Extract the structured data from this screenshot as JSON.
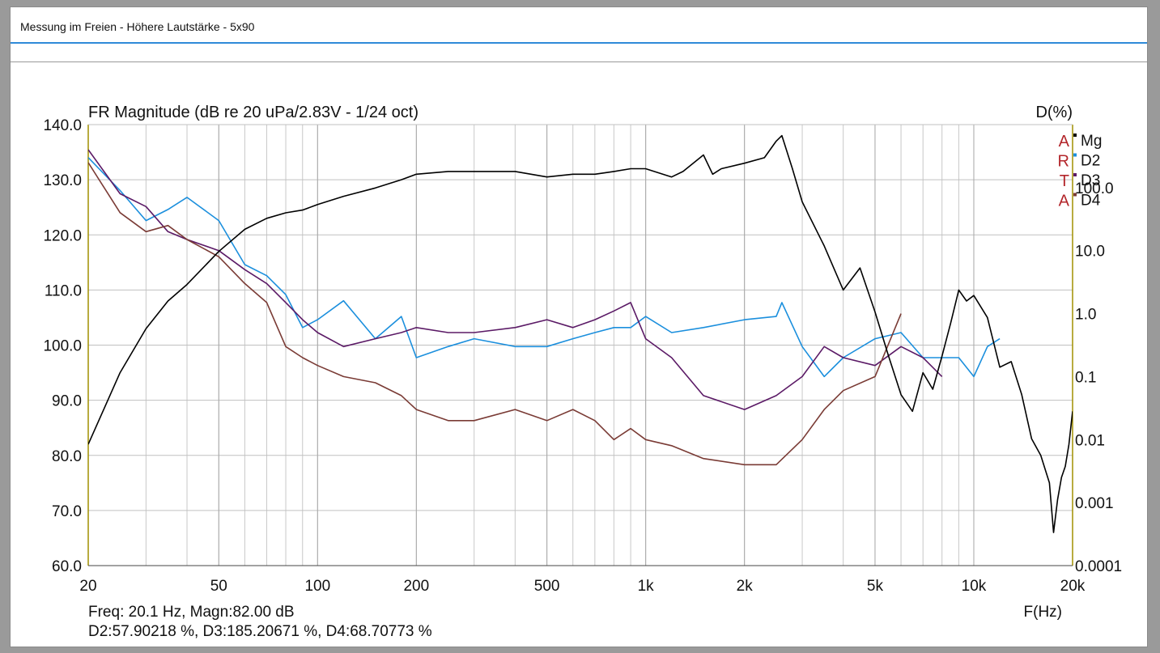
{
  "window": {
    "title": "Messung im Freien - Höhere Lautstärke - 5x90"
  },
  "chart_data": {
    "type": "line",
    "title": "FR Magnitude (dB re 20 uPa/2.83V - 1/24 oct)",
    "right_axis_title": "D(%)",
    "xlabel": "F(Hz)",
    "xscale": "log",
    "xlim": [
      20,
      20000
    ],
    "ylim": [
      60,
      140
    ],
    "y2scale": "log",
    "y2lim": [
      0.0001,
      1000
    ],
    "grid": true,
    "x_ticks": [
      20,
      50,
      100,
      200,
      500,
      1000,
      2000,
      5000,
      10000,
      20000
    ],
    "x_tick_labels": [
      "20",
      "50",
      "100",
      "200",
      "500",
      "1k",
      "2k",
      "5k",
      "10k",
      "20k"
    ],
    "y_ticks": [
      60,
      70,
      80,
      90,
      100,
      110,
      120,
      130,
      140
    ],
    "y_tick_labels": [
      "60.0",
      "70.0",
      "80.0",
      "90.0",
      "100.0",
      "110.0",
      "120.0",
      "130.0",
      "140.0"
    ],
    "y2_ticks": [
      0.0001,
      0.001,
      0.01,
      0.1,
      1,
      10,
      100
    ],
    "y2_tick_labels": [
      "0.0001",
      "0.001",
      "0.01",
      "0.1",
      "1.0",
      "10.0",
      "100.0"
    ],
    "legend_position": "top-right",
    "watermark_letters": [
      "A",
      "R",
      "T",
      "A"
    ],
    "series": [
      {
        "name": "Mg",
        "axis": "left",
        "color": "#000000",
        "x": [
          20,
          25,
          30,
          35,
          40,
          50,
          60,
          70,
          80,
          90,
          100,
          120,
          150,
          180,
          200,
          250,
          300,
          400,
          500,
          600,
          700,
          800,
          900,
          1000,
          1200,
          1300,
          1500,
          1600,
          1700,
          2000,
          2300,
          2500,
          2600,
          2800,
          3000,
          3500,
          4000,
          4500,
          5000,
          5500,
          6000,
          6500,
          7000,
          7500,
          8000,
          8500,
          9000,
          9500,
          10000,
          11000,
          12000,
          13000,
          14000,
          15000,
          16000,
          17000,
          17500,
          18000,
          18500,
          19000,
          19500,
          20000
        ],
        "y": [
          82,
          95,
          103,
          108,
          111,
          117,
          121,
          123,
          124,
          124.5,
          125.5,
          127,
          128.5,
          130,
          131,
          131.5,
          131.5,
          131.5,
          130.5,
          131,
          131,
          131.5,
          132,
          132,
          130.5,
          131.5,
          134.5,
          131,
          132,
          133,
          134,
          137,
          138,
          132,
          126,
          118,
          110,
          114,
          106,
          98,
          91,
          88,
          95,
          92,
          98,
          104,
          110,
          108,
          109,
          105,
          96,
          97,
          91,
          83,
          80,
          75,
          66,
          72,
          76,
          78,
          82,
          88
        ]
      },
      {
        "name": "D2",
        "axis": "right",
        "color": "#1b8fdd",
        "x": [
          20,
          25,
          30,
          35,
          40,
          50,
          60,
          70,
          80,
          90,
          100,
          120,
          150,
          180,
          200,
          250,
          300,
          400,
          500,
          600,
          700,
          800,
          900,
          1000,
          1200,
          1500,
          2000,
          2500,
          2600,
          3000,
          3500,
          4000,
          5000,
          6000,
          7000,
          8000,
          9000,
          10000,
          11000,
          12000
        ],
        "y": [
          300,
          90,
          30,
          45,
          70,
          30,
          6,
          4,
          2,
          0.6,
          0.8,
          1.6,
          0.4,
          0.9,
          0.2,
          0.3,
          0.4,
          0.3,
          0.3,
          0.4,
          0.5,
          0.6,
          0.6,
          0.9,
          0.5,
          0.6,
          0.8,
          0.9,
          1.5,
          0.3,
          0.1,
          0.2,
          0.4,
          0.5,
          0.2,
          0.2,
          0.2,
          0.1,
          0.3,
          0.4
        ]
      },
      {
        "name": "D3",
        "axis": "right",
        "color": "#5b1a66",
        "x": [
          20,
          25,
          30,
          35,
          40,
          50,
          60,
          70,
          80,
          90,
          100,
          120,
          150,
          180,
          200,
          250,
          300,
          400,
          500,
          600,
          700,
          800,
          900,
          1000,
          1200,
          1500,
          2000,
          2500,
          3000,
          3500,
          4000,
          5000,
          6000,
          7000,
          8000
        ],
        "y": [
          400,
          80,
          50,
          20,
          15,
          10,
          5,
          3,
          1.5,
          0.8,
          0.5,
          0.3,
          0.4,
          0.5,
          0.6,
          0.5,
          0.5,
          0.6,
          0.8,
          0.6,
          0.8,
          1.1,
          1.5,
          0.4,
          0.2,
          0.05,
          0.03,
          0.05,
          0.1,
          0.3,
          0.2,
          0.15,
          0.3,
          0.2,
          0.1
        ]
      },
      {
        "name": "D4",
        "axis": "right",
        "color": "#7a3b35",
        "x": [
          20,
          25,
          30,
          35,
          40,
          50,
          60,
          70,
          80,
          90,
          100,
          120,
          150,
          180,
          200,
          250,
          300,
          400,
          500,
          600,
          700,
          800,
          900,
          1000,
          1200,
          1500,
          2000,
          2500,
          3000,
          3500,
          4000,
          5000,
          6000
        ],
        "y": [
          250,
          40,
          20,
          25,
          15,
          8,
          3,
          1.5,
          0.3,
          0.2,
          0.15,
          0.1,
          0.08,
          0.05,
          0.03,
          0.02,
          0.02,
          0.03,
          0.02,
          0.03,
          0.02,
          0.01,
          0.015,
          0.01,
          0.008,
          0.005,
          0.004,
          0.004,
          0.01,
          0.03,
          0.06,
          0.1,
          1
        ]
      }
    ],
    "readout": {
      "line1": "Freq: 20.1 Hz, Magn:82.00 dB",
      "line2": "D2:57.90218 %, D3:185.20671 %, D4:68.70773 %"
    }
  }
}
